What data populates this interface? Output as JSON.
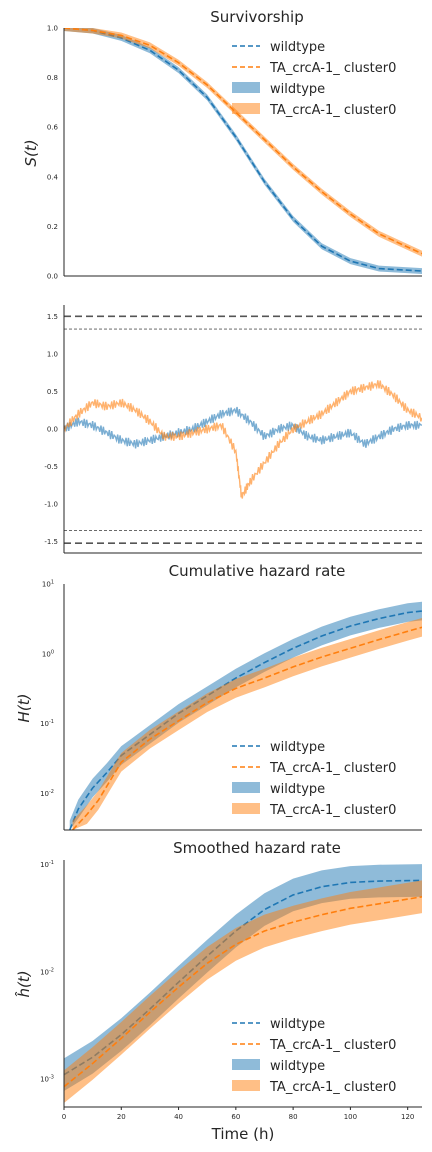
{
  "chart_data": [
    {
      "type": "line",
      "title": "Survivorship",
      "ylabel": "S(t)",
      "xlim": [
        0,
        125
      ],
      "ylim": [
        0,
        1.0
      ],
      "yticks": [
        "0.0",
        "0.2",
        "0.4",
        "0.6",
        "0.8",
        "1.0"
      ],
      "legend_position": "top-right",
      "legend": [
        {
          "label": "wildtype",
          "kind": "dashed-line",
          "color": "#1f77b4"
        },
        {
          "label": "TA_crcA-1_ cluster0",
          "kind": "dashed-line",
          "color": "#ff7f0e"
        },
        {
          "label": "wildtype",
          "kind": "band",
          "color": "#1f77b4"
        },
        {
          "label": "TA_crcA-1_ cluster0",
          "kind": "band",
          "color": "#ff7f0e"
        }
      ],
      "series": [
        {
          "color": "#1f77b4",
          "x": [
            0,
            10,
            20,
            30,
            40,
            50,
            60,
            70,
            80,
            90,
            100,
            110,
            125
          ],
          "y": [
            1.0,
            0.99,
            0.96,
            0.91,
            0.83,
            0.72,
            0.56,
            0.38,
            0.23,
            0.12,
            0.06,
            0.03,
            0.02
          ]
        },
        {
          "color": "#ff7f0e",
          "x": [
            0,
            10,
            20,
            30,
            40,
            50,
            60,
            70,
            80,
            90,
            100,
            110,
            125
          ],
          "y": [
            1.0,
            0.99,
            0.97,
            0.93,
            0.86,
            0.77,
            0.66,
            0.55,
            0.44,
            0.34,
            0.25,
            0.17,
            0.09
          ]
        }
      ]
    },
    {
      "type": "line",
      "xlim": [
        0,
        125
      ],
      "ylim": [
        -1.65,
        1.65
      ],
      "yticks": [
        "-1.5",
        "-1.0",
        "-0.5",
        "0.0",
        "0.5",
        "1.0",
        "1.5"
      ],
      "reference_lines": [
        1.5,
        1.33,
        -1.35,
        -1.52
      ],
      "series": [
        {
          "color": "#1f77b4",
          "x": [
            0,
            5,
            10,
            15,
            20,
            25,
            30,
            35,
            40,
            45,
            50,
            55,
            60,
            65,
            70,
            75,
            80,
            85,
            90,
            95,
            100,
            105,
            110,
            115,
            120,
            125
          ],
          "y": [
            0.0,
            0.1,
            0.05,
            -0.05,
            -0.15,
            -0.2,
            -0.15,
            -0.1,
            -0.05,
            0.0,
            0.1,
            0.2,
            0.25,
            0.1,
            -0.1,
            0.0,
            0.05,
            -0.1,
            -0.15,
            -0.1,
            -0.05,
            -0.2,
            -0.1,
            0.0,
            0.05,
            0.05
          ]
        },
        {
          "color": "#ff7f0e",
          "x": [
            0,
            5,
            10,
            15,
            20,
            25,
            30,
            35,
            40,
            45,
            50,
            55,
            60,
            62,
            65,
            70,
            75,
            80,
            85,
            90,
            95,
            100,
            105,
            110,
            115,
            120,
            125
          ],
          "y": [
            0.0,
            0.2,
            0.35,
            0.3,
            0.35,
            0.25,
            0.1,
            -0.1,
            -0.1,
            -0.05,
            0.0,
            0.05,
            -0.3,
            -0.9,
            -0.7,
            -0.45,
            -0.2,
            0.0,
            0.1,
            0.2,
            0.35,
            0.5,
            0.55,
            0.6,
            0.45,
            0.25,
            0.15
          ]
        }
      ]
    },
    {
      "type": "line",
      "title": "Cumulative hazard rate",
      "ylabel": "H(t)",
      "scale": "log",
      "xlim": [
        0,
        125
      ],
      "ylim": [
        0.003,
        10
      ],
      "yticks": [
        {
          "value": 10,
          "base": "10",
          "exp": "1"
        },
        {
          "value": 1,
          "base": "10",
          "exp": "0"
        },
        {
          "value": 0.1,
          "base": "10",
          "exp": "-1"
        },
        {
          "value": 0.01,
          "base": "10",
          "exp": "-2"
        }
      ],
      "legend_position": "bottom-right",
      "legend": [
        {
          "label": "wildtype",
          "kind": "dashed-line",
          "color": "#1f77b4"
        },
        {
          "label": "TA_crcA-1_ cluster0",
          "kind": "dashed-line",
          "color": "#ff7f0e"
        },
        {
          "label": "wildtype",
          "kind": "band",
          "color": "#1f77b4"
        },
        {
          "label": "TA_crcA-1_ cluster0",
          "kind": "band",
          "color": "#ff7f0e"
        }
      ],
      "series": [
        {
          "color": "#1f77b4",
          "x": [
            2,
            5,
            10,
            15,
            20,
            30,
            40,
            50,
            60,
            70,
            80,
            90,
            100,
            110,
            120,
            125
          ],
          "y": [
            0.003,
            0.006,
            0.012,
            0.02,
            0.035,
            0.07,
            0.14,
            0.25,
            0.45,
            0.75,
            1.2,
            1.8,
            2.5,
            3.2,
            3.9,
            4.1
          ]
        },
        {
          "color": "#ff7f0e",
          "x": [
            3,
            8,
            12,
            16,
            20,
            30,
            40,
            50,
            60,
            70,
            80,
            90,
            100,
            110,
            120,
            125
          ],
          "y": [
            0.003,
            0.005,
            0.008,
            0.015,
            0.028,
            0.06,
            0.11,
            0.2,
            0.32,
            0.45,
            0.65,
            0.9,
            1.2,
            1.6,
            2.1,
            2.4
          ]
        }
      ]
    },
    {
      "type": "line",
      "title": "Smoothed hazard rate",
      "ylabel": "ĥ(t)",
      "xlabel": "Time (h)",
      "scale": "log",
      "xlim": [
        0,
        125
      ],
      "ylim": [
        0.00055,
        0.11
      ],
      "xticks": [
        "0",
        "20",
        "40",
        "60",
        "80",
        "100",
        "120"
      ],
      "yticks": [
        {
          "value": 0.1,
          "base": "10",
          "exp": "-1"
        },
        {
          "value": 0.01,
          "base": "10",
          "exp": "-2"
        },
        {
          "value": 0.001,
          "base": "10",
          "exp": "-3"
        }
      ],
      "legend_position": "bottom-right",
      "legend": [
        {
          "label": "wildtype",
          "kind": "dashed-line",
          "color": "#1f77b4"
        },
        {
          "label": "TA_crcA-1_ cluster0",
          "kind": "dashed-line",
          "color": "#ff7f0e"
        },
        {
          "label": "wildtype",
          "kind": "band",
          "color": "#1f77b4"
        },
        {
          "label": "TA_crcA-1_ cluster0",
          "kind": "band",
          "color": "#ff7f0e"
        }
      ],
      "series": [
        {
          "color": "#1f77b4",
          "x": [
            0,
            10,
            20,
            30,
            40,
            50,
            60,
            70,
            80,
            90,
            100,
            110,
            125
          ],
          "y": [
            0.0011,
            0.0016,
            0.0026,
            0.0045,
            0.008,
            0.014,
            0.024,
            0.038,
            0.052,
            0.062,
            0.068,
            0.07,
            0.071
          ]
        },
        {
          "color": "#ff7f0e",
          "x": [
            0,
            10,
            20,
            30,
            40,
            50,
            60,
            70,
            80,
            90,
            100,
            110,
            125
          ],
          "y": [
            0.00085,
            0.0014,
            0.0024,
            0.0042,
            0.0072,
            0.012,
            0.018,
            0.024,
            0.029,
            0.034,
            0.039,
            0.043,
            0.05
          ]
        }
      ]
    }
  ]
}
